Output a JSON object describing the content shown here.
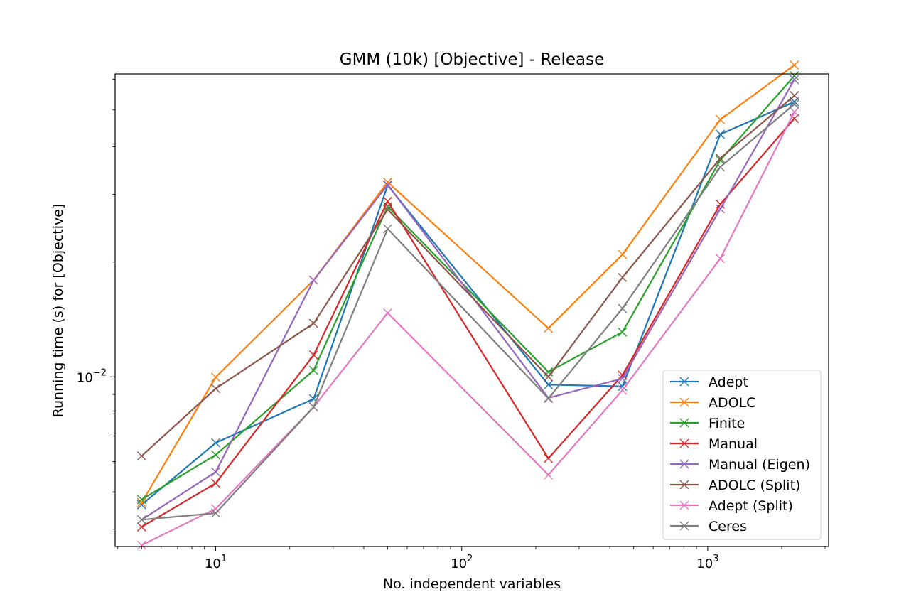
{
  "chart_data": {
    "type": "line",
    "title": "GMM (10k) [Objective] - Release",
    "xlabel": "No. independent variables",
    "ylabel": "Running time (s) for [Objective]",
    "xscale": "log",
    "yscale": "log",
    "xlim": [
      3.9,
      3100
    ],
    "ylim": [
      0.0036,
      0.062
    ],
    "marker": "x",
    "grid": false,
    "legend_position": "lower-right",
    "x": [
      5,
      10,
      25,
      50,
      225,
      450,
      1125,
      2250
    ],
    "x_ticks": [
      {
        "value": 10,
        "base": "10",
        "exp": "1"
      },
      {
        "value": 100,
        "base": "10",
        "exp": "2"
      },
      {
        "value": 1000,
        "base": "10",
        "exp": "3"
      }
    ],
    "y_ticks": [
      {
        "value": 0.01,
        "base": "10",
        "exp": "−2"
      }
    ],
    "series": [
      {
        "name": "Adept",
        "color": "#1f77b4",
        "values": [
          0.00463,
          0.00672,
          0.00876,
          0.0317,
          0.00954,
          0.00944,
          0.0431,
          0.0524
        ]
      },
      {
        "name": "ADOLC",
        "color": "#ff7f0e",
        "values": [
          0.00469,
          0.00998,
          0.0179,
          0.0323,
          0.0134,
          0.0209,
          0.0471,
          0.0654
        ]
      },
      {
        "name": "Finite",
        "color": "#2ca02c",
        "values": [
          0.00478,
          0.00625,
          0.0104,
          0.0279,
          0.0103,
          0.0131,
          0.0369,
          0.0613
        ]
      },
      {
        "name": "Manual",
        "color": "#d62728",
        "values": [
          0.00405,
          0.00527,
          0.0114,
          0.0288,
          0.00612,
          0.0101,
          0.0283,
          0.0474
        ]
      },
      {
        "name": "Manual (Eigen)",
        "color": "#9467bd",
        "values": [
          0.00423,
          0.00564,
          0.0179,
          0.0318,
          0.00881,
          0.0099,
          0.0275,
          0.0599
        ]
      },
      {
        "name": "ADOLC (Split)",
        "color": "#8c564b",
        "values": [
          0.00621,
          0.00932,
          0.0138,
          0.0274,
          0.01,
          0.0182,
          0.0373,
          0.0544
        ]
      },
      {
        "name": "Adept (Split)",
        "color": "#e377c2",
        "values": [
          0.00363,
          0.00452,
          0.00834,
          0.0147,
          0.00554,
          0.00923,
          0.0204,
          0.0493
        ]
      },
      {
        "name": "Ceres",
        "color": "#7f7f7f",
        "values": [
          0.00423,
          0.0044,
          0.00834,
          0.0244,
          0.00878,
          0.0151,
          0.0354,
          0.0517
        ]
      }
    ]
  }
}
